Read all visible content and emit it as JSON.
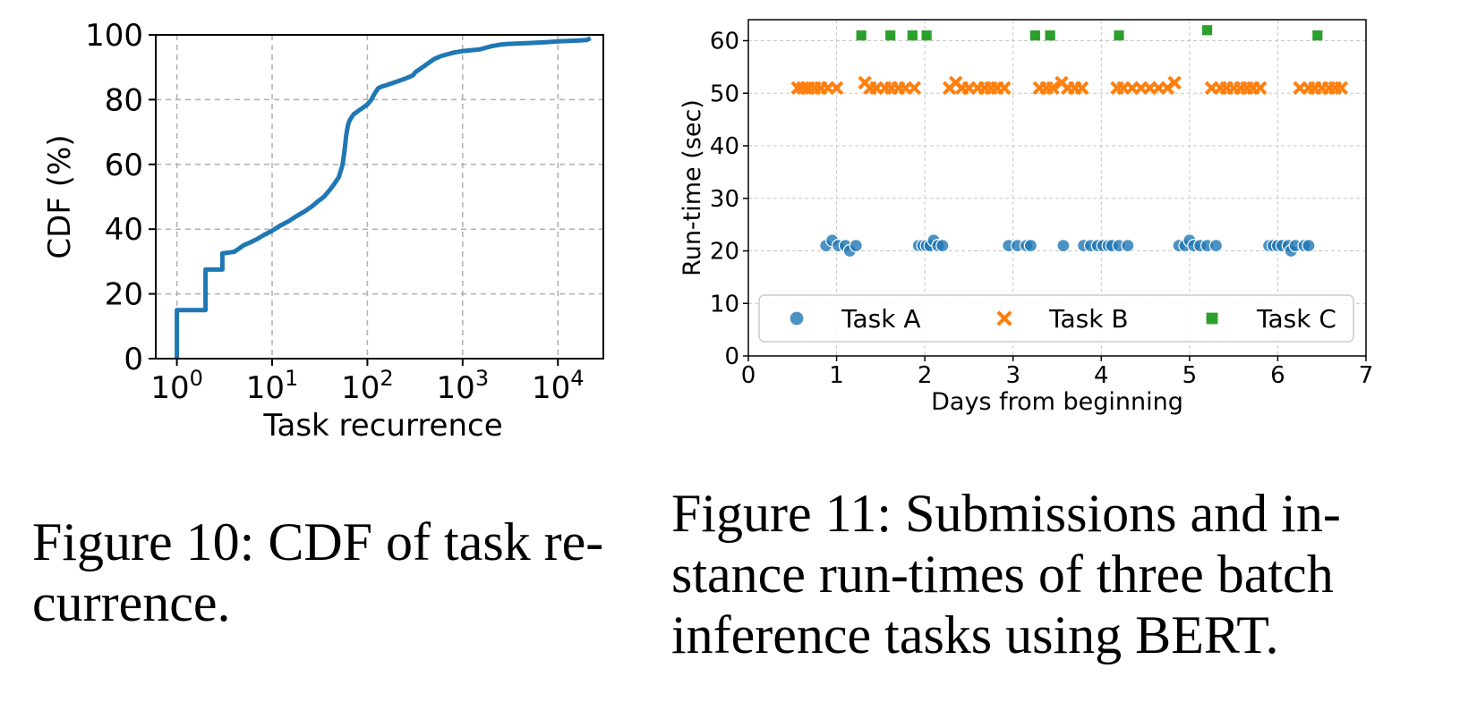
{
  "chart_data": [
    {
      "type": "line",
      "xlabel": "Task recurrence",
      "ylabel": "CDF (%)",
      "xscale": "log",
      "xlim": [
        0.6,
        30000
      ],
      "ylim": [
        0,
        100
      ],
      "grid": true,
      "xticks": [
        {
          "value": 1,
          "base": "10",
          "exp": "0"
        },
        {
          "value": 10,
          "base": "10",
          "exp": "1"
        },
        {
          "value": 100,
          "base": "10",
          "exp": "2"
        },
        {
          "value": 1000,
          "base": "10",
          "exp": "3"
        },
        {
          "value": 10000,
          "base": "10",
          "exp": "4"
        }
      ],
      "yticks": [
        "0",
        "20",
        "40",
        "60",
        "80",
        "100"
      ],
      "color": "#1f77b4",
      "series": [
        {
          "x": [
            1,
            1,
            2,
            2,
            3,
            3,
            4,
            4.5,
            5,
            6,
            7,
            8,
            10,
            12,
            15,
            18,
            22,
            26,
            30,
            35,
            40,
            45,
            50,
            55,
            58,
            60,
            62,
            63,
            64,
            65,
            68,
            72,
            80,
            90,
            100,
            110,
            120,
            130,
            140,
            160,
            200,
            250,
            300,
            320,
            400,
            500,
            600,
            800,
            1000,
            1500,
            2000,
            2500,
            3000,
            5000,
            8000,
            10000,
            15000,
            20000,
            22000
          ],
          "y": [
            0,
            15,
            15,
            27.5,
            27.5,
            32.5,
            33,
            34,
            35,
            36,
            37,
            38,
            39.5,
            41,
            42.5,
            44,
            45.5,
            47,
            48.5,
            50,
            52,
            54,
            56,
            60,
            65,
            69,
            71.5,
            72.5,
            73,
            73.5,
            74.5,
            75.5,
            76.5,
            77.5,
            78.5,
            80,
            82,
            83.5,
            84,
            84.5,
            85.5,
            86.5,
            87.5,
            88.5,
            90.5,
            92.5,
            93.5,
            94.5,
            95,
            95.5,
            96.5,
            97,
            97.2,
            97.5,
            97.8,
            98,
            98.2,
            98.4,
            99
          ]
        }
      ]
    },
    {
      "type": "scatter",
      "xlabel": "Days from beginning",
      "ylabel": "Run-time (sec)",
      "xlim": [
        0,
        7
      ],
      "ylim": [
        0,
        64
      ],
      "grid": true,
      "xticks": [
        "0",
        "1",
        "2",
        "3",
        "4",
        "5",
        "6",
        "7"
      ],
      "yticks": [
        "0",
        "10",
        "20",
        "30",
        "40",
        "50",
        "60"
      ],
      "legend_position": "bottom",
      "series": [
        {
          "name": "Task A",
          "color": "#1f77b4",
          "marker": "circle",
          "points": [
            [
              0.88,
              21
            ],
            [
              0.95,
              22
            ],
            [
              1.02,
              21
            ],
            [
              1.1,
              21
            ],
            [
              1.15,
              20
            ],
            [
              1.22,
              21
            ],
            [
              1.93,
              21
            ],
            [
              1.98,
              21
            ],
            [
              2.02,
              21
            ],
            [
              2.06,
              21
            ],
            [
              2.1,
              22
            ],
            [
              2.15,
              21
            ],
            [
              2.2,
              21
            ],
            [
              2.95,
              21
            ],
            [
              3.05,
              21
            ],
            [
              3.15,
              21
            ],
            [
              3.2,
              21
            ],
            [
              3.57,
              21
            ],
            [
              3.8,
              21
            ],
            [
              3.88,
              21
            ],
            [
              3.96,
              21
            ],
            [
              4.02,
              21
            ],
            [
              4.08,
              21
            ],
            [
              4.12,
              21
            ],
            [
              4.2,
              21
            ],
            [
              4.3,
              21
            ],
            [
              4.88,
              21
            ],
            [
              4.95,
              21
            ],
            [
              5.0,
              22
            ],
            [
              5.05,
              21
            ],
            [
              5.12,
              21
            ],
            [
              5.2,
              21
            ],
            [
              5.3,
              21
            ],
            [
              5.9,
              21
            ],
            [
              5.95,
              21
            ],
            [
              6.0,
              21
            ],
            [
              6.05,
              21
            ],
            [
              6.12,
              21
            ],
            [
              6.15,
              20
            ],
            [
              6.2,
              21
            ],
            [
              6.3,
              21
            ],
            [
              6.35,
              21
            ]
          ]
        },
        {
          "name": "Task B",
          "color": "#ff7f0e",
          "marker": "x",
          "points": [
            [
              0.56,
              51
            ],
            [
              0.62,
              51
            ],
            [
              0.68,
              51
            ],
            [
              0.75,
              51
            ],
            [
              0.82,
              51
            ],
            [
              0.9,
              51
            ],
            [
              1.0,
              51
            ],
            [
              1.32,
              52
            ],
            [
              1.38,
              51
            ],
            [
              1.45,
              51
            ],
            [
              1.55,
              51
            ],
            [
              1.62,
              51
            ],
            [
              1.7,
              51
            ],
            [
              1.78,
              51
            ],
            [
              1.88,
              51
            ],
            [
              2.28,
              51
            ],
            [
              2.35,
              52
            ],
            [
              2.42,
              51
            ],
            [
              2.5,
              51
            ],
            [
              2.6,
              51
            ],
            [
              2.68,
              51
            ],
            [
              2.75,
              51
            ],
            [
              2.82,
              51
            ],
            [
              2.9,
              51
            ],
            [
              3.3,
              51
            ],
            [
              3.38,
              51
            ],
            [
              3.45,
              51
            ],
            [
              3.55,
              52
            ],
            [
              3.62,
              51
            ],
            [
              3.7,
              51
            ],
            [
              3.78,
              51
            ],
            [
              4.18,
              51
            ],
            [
              4.25,
              51
            ],
            [
              4.35,
              51
            ],
            [
              4.45,
              51
            ],
            [
              4.55,
              51
            ],
            [
              4.65,
              51
            ],
            [
              4.75,
              51
            ],
            [
              4.83,
              52
            ],
            [
              5.25,
              51
            ],
            [
              5.35,
              51
            ],
            [
              5.42,
              51
            ],
            [
              5.5,
              51
            ],
            [
              5.58,
              51
            ],
            [
              5.65,
              51
            ],
            [
              5.72,
              51
            ],
            [
              5.8,
              51
            ],
            [
              6.25,
              51
            ],
            [
              6.35,
              51
            ],
            [
              6.42,
              51
            ],
            [
              6.5,
              51
            ],
            [
              6.58,
              51
            ],
            [
              6.65,
              51
            ],
            [
              6.72,
              51
            ]
          ]
        },
        {
          "name": "Task C",
          "color": "#2ca02c",
          "marker": "square",
          "points": [
            [
              1.28,
              61
            ],
            [
              1.61,
              61
            ],
            [
              1.86,
              61
            ],
            [
              2.02,
              61
            ],
            [
              3.25,
              61
            ],
            [
              3.42,
              61
            ],
            [
              4.2,
              61
            ],
            [
              5.2,
              62
            ],
            [
              6.45,
              61
            ]
          ]
        }
      ]
    }
  ],
  "captions": {
    "fig10": [
      "Figure 10: CDF of task re-",
      "currence."
    ],
    "fig11": [
      "Figure 11: Submissions and in-",
      "stance run-times of three batch",
      "inference tasks using BERT."
    ]
  }
}
